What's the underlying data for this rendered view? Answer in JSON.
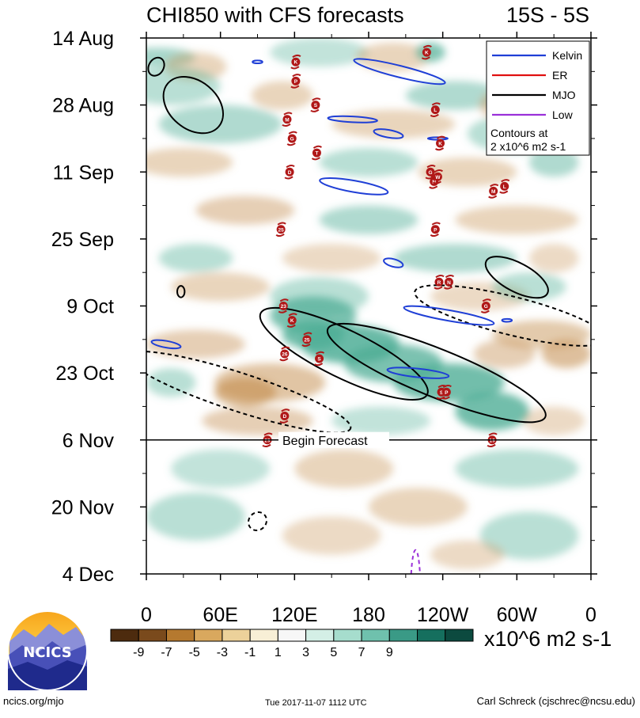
{
  "chart_data": {
    "type": "heatmap",
    "title": "CHI850 with CFS forecasts",
    "region": "15S - 5S",
    "x_ticks": [
      "0",
      "60E",
      "120E",
      "180",
      "120W",
      "60W",
      "0"
    ],
    "x_tick_lon": [
      0,
      60,
      120,
      180,
      240,
      300,
      360
    ],
    "y_ticks": [
      "14 Aug",
      "28 Aug",
      "11 Sep",
      "25 Sep",
      "9 Oct",
      "23 Oct",
      "6 Nov",
      "20 Nov",
      "4 Dec"
    ],
    "y_tick_day": [
      0,
      14,
      28,
      42,
      56,
      70,
      84,
      98,
      112
    ],
    "forecast_day": 84,
    "forecast_label": "Begin Forecast",
    "legend": {
      "placement": "top-right",
      "entries": [
        {
          "name": "Kelvin",
          "color": "#1f3fd6",
          "dash": false
        },
        {
          "name": "ER",
          "color": "#e01010",
          "dash": false
        },
        {
          "name": "MJO",
          "color": "#000000",
          "dash": false
        },
        {
          "name": "Low",
          "color": "#9b30d9",
          "dash": false
        }
      ],
      "note_line1": "Contours at",
      "note_line2": "2 x10^6 m2 s-1"
    },
    "colorbar": {
      "labels": [
        "-9",
        "-7",
        "-5",
        "-3",
        "-1",
        "1",
        "3",
        "5",
        "7",
        "9"
      ],
      "colors": [
        "#4d2b0e",
        "#7a4a1c",
        "#b5792f",
        "#d9a85e",
        "#ecd19a",
        "#f8efd6",
        "#f7f7f7",
        "#d4efe6",
        "#a6ddcd",
        "#6fc1ad",
        "#3a9a86",
        "#156f5e",
        "#0c4a3f"
      ],
      "units": "x10^6 m2 s-1"
    },
    "storms": [
      {
        "id": "K",
        "lon": 121,
        "day": 5
      },
      {
        "id": "P",
        "lon": 121,
        "day": 9
      },
      {
        "id": "S",
        "lon": 137,
        "day": 14
      },
      {
        "id": "M",
        "lon": 114,
        "day": 17
      },
      {
        "id": "G",
        "lon": 118,
        "day": 21
      },
      {
        "id": "T",
        "lon": 138,
        "day": 24
      },
      {
        "id": "D",
        "lon": 116,
        "day": 28
      },
      {
        "id": "25",
        "lon": 109,
        "day": 40
      },
      {
        "id": "23",
        "lon": 111,
        "day": 56
      },
      {
        "id": "K",
        "lon": 118,
        "day": 59
      },
      {
        "id": "25",
        "lon": 130,
        "day": 63
      },
      {
        "id": "26",
        "lon": 112,
        "day": 66
      },
      {
        "id": "S",
        "lon": 140,
        "day": 67
      },
      {
        "id": "D",
        "lon": 112,
        "day": 79
      },
      {
        "id": "29",
        "lon": 98,
        "day": 84
      },
      {
        "id": "K",
        "lon": 227,
        "day": 3
      },
      {
        "id": "L",
        "lon": 234,
        "day": 15
      },
      {
        "id": "K",
        "lon": 238,
        "day": 22
      },
      {
        "id": "G",
        "lon": 230,
        "day": 28
      },
      {
        "id": "N",
        "lon": 233,
        "day": 30
      },
      {
        "id": "W",
        "lon": 236,
        "day": 29
      },
      {
        "id": "M",
        "lon": 281,
        "day": 32
      },
      {
        "id": "L",
        "lon": 290,
        "day": 31
      },
      {
        "id": "P",
        "lon": 234,
        "day": 40
      },
      {
        "id": "R",
        "lon": 237,
        "day": 51
      },
      {
        "id": "N",
        "lon": 245,
        "day": 51
      },
      {
        "id": "G",
        "lon": 275,
        "day": 56
      },
      {
        "id": "S",
        "lon": 239,
        "day": 74
      },
      {
        "id": "P",
        "lon": 243,
        "day": 74
      },
      {
        "id": "19",
        "lon": 280,
        "day": 84
      }
    ]
  },
  "footer": {
    "left": "ncics.org/mjo",
    "center": "Tue 2017-11-07 1112 UTC",
    "right": "Carl Schreck (cjschrec@ncsu.edu)"
  },
  "logo": {
    "text": "NCICS"
  },
  "colors": {
    "brown": "#c8955a",
    "green": "#4fae96",
    "kelvin": "#1f3fd6",
    "mjo": "#000000",
    "low": "#9b30d9",
    "storm": "#b01818"
  }
}
